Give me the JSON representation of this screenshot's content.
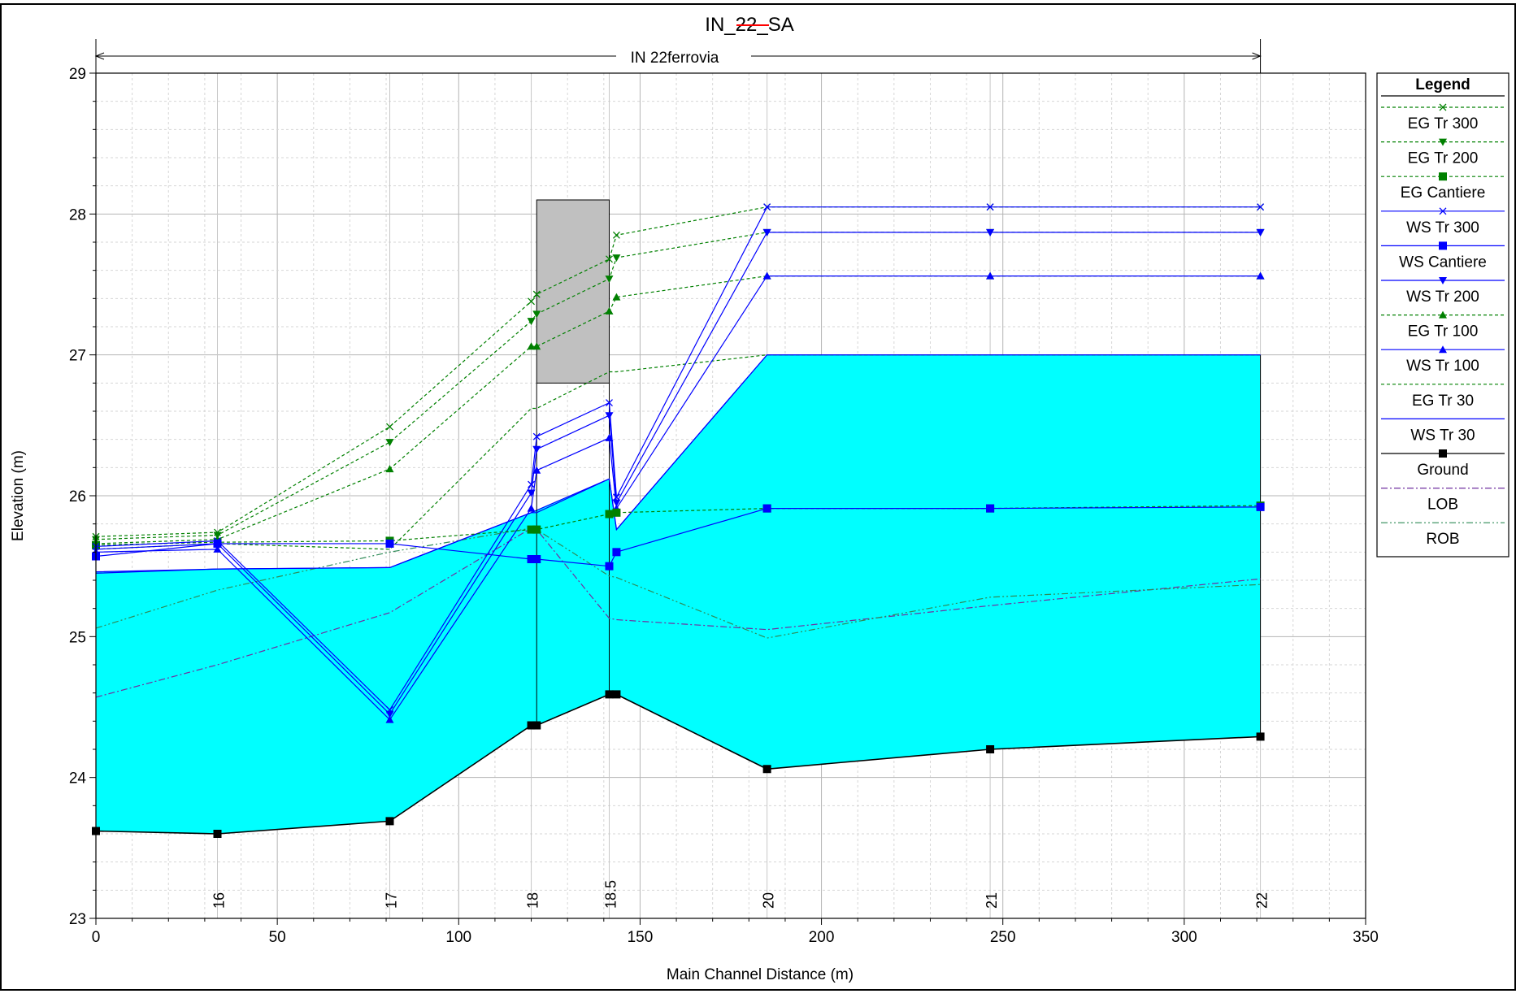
{
  "chart_data": {
    "type": "line",
    "title": "IN_22_SA",
    "reach_label": "IN 22ferrovia",
    "xlabel": "Main Channel Distance (m)",
    "ylabel": "Elevation (m)",
    "xlim": [
      0,
      350
    ],
    "ylim": [
      23,
      29
    ],
    "x_ticks": [
      0,
      50,
      100,
      150,
      200,
      250,
      300,
      350
    ],
    "y_ticks": [
      23,
      24,
      25,
      26,
      27,
      28,
      29
    ],
    "grid": true,
    "legend_position": "right",
    "legend_title": "Legend",
    "reach_extent": [
      0,
      321
    ],
    "stations": [
      {
        "label": "16",
        "x": 33.5
      },
      {
        "label": "17",
        "x": 81
      },
      {
        "label": "18",
        "x": 120
      },
      {
        "label": "18.5",
        "x": 141.5
      },
      {
        "label": "20",
        "x": 185
      },
      {
        "label": "21",
        "x": 246.5
      },
      {
        "label": "22",
        "x": 321
      }
    ],
    "bridge": {
      "x": [
        121.5,
        141.5
      ],
      "high_chord": 28.1,
      "low_chord": 26.8
    },
    "conveyance": {
      "top": [
        [
          0,
          25.46
        ],
        [
          33.5,
          25.48
        ],
        [
          81,
          25.49
        ],
        [
          120,
          25.88
        ],
        [
          141.5,
          26.12
        ],
        [
          143.5,
          25.76
        ],
        [
          185,
          27.0
        ],
        [
          321,
          27.0
        ]
      ],
      "bottom": [
        [
          0,
          23.62
        ],
        [
          33.5,
          23.6
        ],
        [
          81,
          23.69
        ],
        [
          120,
          24.37
        ],
        [
          121.5,
          24.37
        ],
        [
          141.5,
          24.59
        ],
        [
          143.5,
          24.59
        ],
        [
          185,
          24.06
        ],
        [
          246.5,
          24.2
        ],
        [
          321,
          24.29
        ]
      ]
    },
    "series": [
      {
        "name": "EG  Tr 300",
        "line": "dashed",
        "color": "#008000",
        "marker": "x",
        "x": [
          0,
          33.5,
          81,
          120,
          121.5,
          141.5,
          143.5,
          185,
          246.5,
          321
        ],
        "y": [
          25.71,
          25.74,
          26.49,
          27.38,
          27.43,
          27.68,
          27.85,
          28.05,
          28.05,
          28.05
        ]
      },
      {
        "name": "EG  Tr 200",
        "line": "dashed",
        "color": "#008000",
        "marker": "triangle-down",
        "x": [
          0,
          33.5,
          81,
          120,
          121.5,
          141.5,
          143.5,
          185,
          246.5,
          321
        ],
        "y": [
          25.69,
          25.72,
          26.38,
          27.24,
          27.29,
          27.54,
          27.69,
          27.87,
          27.87,
          27.87
        ]
      },
      {
        "name": "EG  Cantiere",
        "line": "dashed",
        "color": "#008000",
        "marker": "square",
        "x": [
          0,
          33.5,
          81,
          120,
          121.5,
          141.5,
          143.5,
          185,
          246.5,
          321
        ],
        "y": [
          25.65,
          25.67,
          25.68,
          25.76,
          25.76,
          25.87,
          25.88,
          25.91,
          25.91,
          25.93
        ]
      },
      {
        "name": "WS  Tr 300",
        "line": "solid",
        "color": "#0000ff",
        "marker": "x",
        "x": [
          0,
          33.5,
          81,
          120,
          121.5,
          141.5,
          143.5,
          185,
          246.5,
          321
        ],
        "y": [
          25.64,
          25.68,
          24.48,
          26.08,
          26.42,
          26.66,
          25.99,
          28.05,
          28.05,
          28.05
        ]
      },
      {
        "name": "WS  Cantiere",
        "line": "solid",
        "color": "#0000ff",
        "marker": "square",
        "x": [
          0,
          33.5,
          81,
          120,
          121.5,
          141.5,
          143.5,
          185,
          246.5,
          321
        ],
        "y": [
          25.57,
          25.66,
          25.66,
          25.55,
          25.55,
          25.5,
          25.6,
          25.91,
          25.91,
          25.92
        ]
      },
      {
        "name": "WS  Tr 200",
        "line": "solid",
        "color": "#0000ff",
        "marker": "triangle-down",
        "x": [
          0,
          33.5,
          81,
          120,
          121.5,
          141.5,
          143.5,
          185,
          246.5,
          321
        ],
        "y": [
          25.62,
          25.66,
          24.45,
          26.02,
          26.33,
          26.57,
          25.95,
          27.87,
          27.87,
          27.87
        ]
      },
      {
        "name": "EG  Tr 100",
        "line": "dashed",
        "color": "#008000",
        "marker": "triangle-up",
        "x": [
          0,
          33.5,
          81,
          120,
          121.5,
          141.5,
          143.5,
          185,
          246.5,
          321
        ],
        "y": [
          25.66,
          25.69,
          26.19,
          27.06,
          27.06,
          27.31,
          27.41,
          27.56,
          27.56,
          27.56
        ]
      },
      {
        "name": "WS  Tr 100",
        "line": "solid",
        "color": "#0000ff",
        "marker": "triangle-up",
        "x": [
          0,
          33.5,
          81,
          120,
          121.5,
          141.5,
          143.5,
          185,
          246.5,
          321
        ],
        "y": [
          25.6,
          25.62,
          24.41,
          25.91,
          26.18,
          26.41,
          25.91,
          27.56,
          27.56,
          27.56
        ]
      },
      {
        "name": "EG  Tr 30",
        "line": "dashed",
        "color": "#008000",
        "marker": "none",
        "x": [
          0,
          33.5,
          81,
          120,
          121.5,
          141.5,
          143.5,
          185,
          246.5,
          321
        ],
        "y": [
          25.62,
          25.66,
          25.62,
          26.62,
          26.62,
          26.88,
          26.88,
          27.0,
          27.0,
          27.0
        ]
      },
      {
        "name": "WS  Tr 30",
        "line": "solid",
        "color": "#0000ff",
        "marker": "none",
        "x": [
          0,
          33.5,
          81,
          120,
          121.5,
          141.5,
          143.5,
          185,
          246.5,
          321
        ],
        "y": [
          25.45,
          25.48,
          25.49,
          25.88,
          25.88,
          26.12,
          25.76,
          27.0,
          27.0,
          27.0
        ]
      },
      {
        "name": "Ground",
        "line": "solid",
        "color": "#000000",
        "marker": "square",
        "x": [
          0,
          33.5,
          81,
          120,
          121.5,
          141.5,
          143.5,
          185,
          246.5,
          321
        ],
        "y": [
          23.62,
          23.6,
          23.69,
          24.37,
          24.37,
          24.59,
          24.59,
          24.06,
          24.2,
          24.29
        ]
      },
      {
        "name": "LOB",
        "line": "dashdot",
        "color": "#7030a0",
        "marker": "none",
        "x": [
          0,
          33.5,
          81,
          120,
          121.5,
          141.5,
          143.5,
          185,
          246.5,
          321
        ],
        "y": [
          24.57,
          24.8,
          25.17,
          25.77,
          25.76,
          25.13,
          25.12,
          25.05,
          25.22,
          25.41
        ]
      },
      {
        "name": "ROB",
        "line": "dashdotdot",
        "color": "#2e8b57",
        "marker": "none",
        "x": [
          0,
          33.5,
          81,
          120,
          121.5,
          141.5,
          143.5,
          185,
          246.5,
          321
        ],
        "y": [
          25.06,
          25.33,
          25.6,
          25.77,
          25.76,
          25.43,
          25.42,
          24.99,
          25.28,
          25.37
        ]
      }
    ]
  }
}
